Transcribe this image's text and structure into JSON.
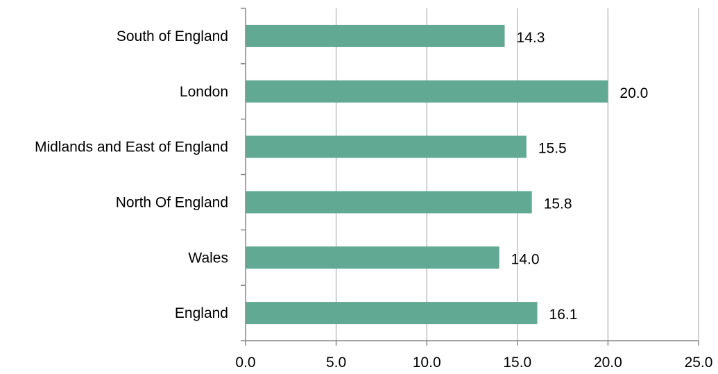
{
  "chart_data": {
    "type": "bar",
    "orientation": "horizontal",
    "categories": [
      "South of England",
      "London",
      "Midlands and East of England",
      "North Of England",
      "Wales",
      "England"
    ],
    "values": [
      14.3,
      20.0,
      15.5,
      15.8,
      14.0,
      16.1
    ],
    "value_labels": [
      "14.3",
      "20.0",
      "15.5",
      "15.8",
      "14.0",
      "16.1"
    ],
    "x_ticks": [
      "0.0",
      "5.0",
      "10.0",
      "15.0",
      "20.0",
      "25.0"
    ],
    "xlim": [
      0,
      25
    ],
    "xlabel": "",
    "ylabel": "",
    "title": "",
    "grid": "vertical",
    "legend": "none",
    "colors": {
      "bar": "#62a994",
      "grid": "#bfbfbf",
      "axis": "#868686"
    }
  }
}
